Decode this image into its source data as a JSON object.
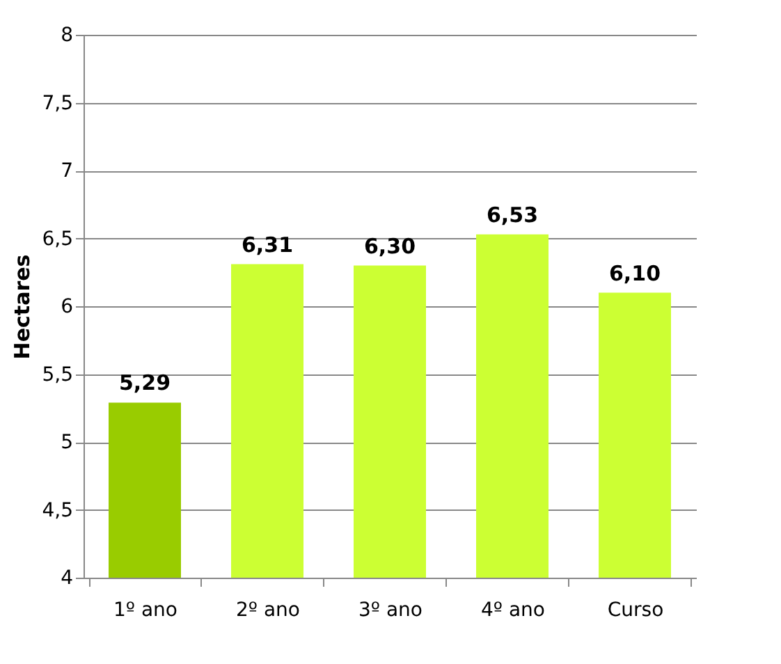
{
  "chart_data": {
    "type": "bar",
    "ylabel": "Hectares",
    "categories": [
      "1º ano",
      "2º ano",
      "3º ano",
      "4º ano",
      "Curso"
    ],
    "values": [
      5.29,
      6.31,
      6.3,
      6.53,
      6.1
    ],
    "colors": [
      "#99cc00",
      "#ccff33",
      "#ccff33",
      "#ccff33",
      "#ccff33"
    ],
    "value_labels": [
      "5,29",
      "6,31",
      "6,30",
      "6,53",
      "6,10"
    ],
    "ylim": [
      4,
      8
    ],
    "yticks": [
      4,
      {
        "value": 4.5,
        "label": "4,5"
      },
      5,
      {
        "value": 5.5,
        "label": "5,5"
      },
      6,
      {
        "value": 6.5,
        "label": "6,5"
      },
      7,
      {
        "value": 7.5,
        "label": "7,5"
      },
      8
    ],
    "grid": "y"
  }
}
